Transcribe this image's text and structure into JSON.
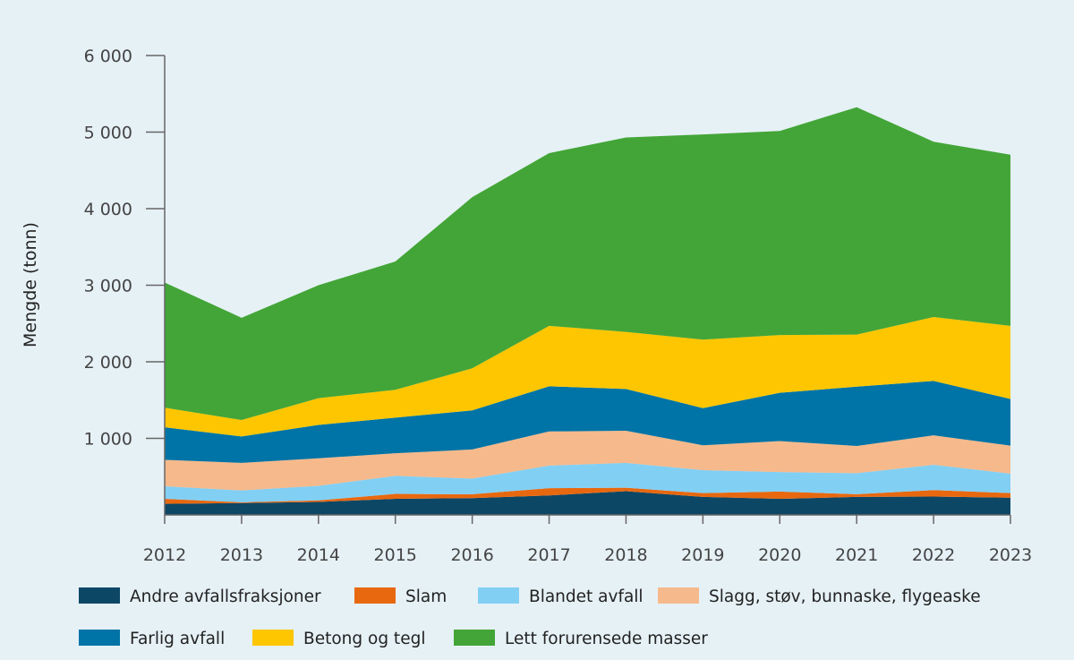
{
  "chart_data": {
    "type": "area",
    "stacked": true,
    "title": "",
    "xlabel": "",
    "ylabel": "Mengde (tonn)",
    "ylim": [
      0,
      6000
    ],
    "yticks": [
      1000,
      2000,
      3000,
      4000,
      5000,
      6000
    ],
    "ytick_labels": [
      "1 000",
      "2 000",
      "3 000",
      "4 000",
      "5 000",
      "6 000"
    ],
    "grid": false,
    "legend_position": "bottom",
    "categories": [
      "2012",
      "2013",
      "2014",
      "2015",
      "2016",
      "2017",
      "2018",
      "2019",
      "2020",
      "2021",
      "2022",
      "2023"
    ],
    "series": [
      {
        "name": "Andre avfallsfraksjoner",
        "color": "#0d4766",
        "values": [
          145,
          155,
          170,
          210,
          220,
          255,
          310,
          235,
          210,
          235,
          240,
          225
        ]
      },
      {
        "name": "Slam",
        "color": "#e8680f",
        "values": [
          65,
          10,
          20,
          65,
          50,
          95,
          45,
          50,
          95,
          35,
          85,
          60
        ]
      },
      {
        "name": "Blandet avfall",
        "color": "#82cff4",
        "values": [
          165,
          155,
          190,
          235,
          205,
          295,
          325,
          300,
          255,
          275,
          330,
          255
        ]
      },
      {
        "name": "Slagg, støv, bunnaske, flygeaske",
        "color": "#f6b98b",
        "values": [
          345,
          360,
          360,
          295,
          380,
          445,
          420,
          325,
          405,
          355,
          385,
          365
        ]
      },
      {
        "name": "Farlig avfall",
        "color": "#0074a6",
        "values": [
          425,
          345,
          435,
          465,
          510,
          590,
          545,
          485,
          630,
          775,
          710,
          610
        ]
      },
      {
        "name": "Betong og tegl",
        "color": "#fdc600",
        "values": [
          255,
          215,
          350,
          365,
          550,
          790,
          745,
          895,
          755,
          680,
          835,
          955
        ]
      },
      {
        "name": "Lett forurensede masser",
        "color": "#43a537",
        "values": [
          1635,
          1335,
          1475,
          1675,
          2235,
          2255,
          2540,
          2680,
          2665,
          2970,
          2290,
          2235
        ]
      }
    ]
  }
}
